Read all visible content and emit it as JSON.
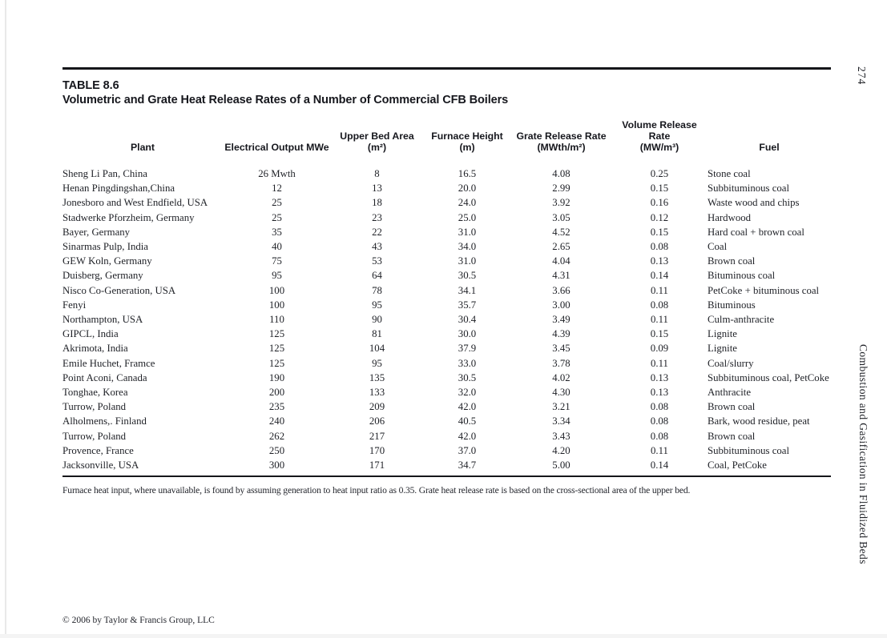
{
  "page": {
    "number": "274",
    "side_title": "Combustion and Gasification in Fluidized Beds",
    "copyright": "© 2006 by Taylor & Francis Group, LLC"
  },
  "table": {
    "label": "TABLE 8.6",
    "title": "Volumetric and Grate Heat Release Rates of a Number of Commercial CFB Boilers",
    "columns": [
      {
        "label": "Plant",
        "unit": ""
      },
      {
        "label": "Electrical Output MWe",
        "unit": ""
      },
      {
        "label": "Upper Bed Area",
        "unit": "(m²)"
      },
      {
        "label": "Furnace Height",
        "unit": "(m)"
      },
      {
        "label": "Grate Release Rate",
        "unit": "(MWth/m²)"
      },
      {
        "label": "Volume Release Rate",
        "unit": "(MW/m³)"
      },
      {
        "label": "Fuel",
        "unit": ""
      }
    ],
    "rows": [
      [
        "Sheng Li Pan, China",
        "26 Mwth",
        "8",
        "16.5",
        "4.08",
        "0.25",
        "Stone coal"
      ],
      [
        "Henan Pingdingshan,China",
        "12",
        "13",
        "20.0",
        "2.99",
        "0.15",
        "Subbituminous coal"
      ],
      [
        "Jonesboro and West Endfield, USA",
        "25",
        "18",
        "24.0",
        "3.92",
        "0.16",
        "Waste wood and chips"
      ],
      [
        "Stadwerke Pforzheim, Germany",
        "25",
        "23",
        "25.0",
        "3.05",
        "0.12",
        "Hardwood"
      ],
      [
        "Bayer, Germany",
        "35",
        "22",
        "31.0",
        "4.52",
        "0.15",
        "Hard coal + brown coal"
      ],
      [
        "Sinarmas Pulp, India",
        "40",
        "43",
        "34.0",
        "2.65",
        "0.08",
        "Coal"
      ],
      [
        "GEW Koln, Germany",
        "75",
        "53",
        "31.0",
        "4.04",
        "0.13",
        "Brown coal"
      ],
      [
        "Duisberg, Germany",
        "95",
        "64",
        "30.5",
        "4.31",
        "0.14",
        "Bituminous coal"
      ],
      [
        "Nisco Co-Generation, USA",
        "100",
        "78",
        "34.1",
        "3.66",
        "0.11",
        "PetCoke + bituminous coal"
      ],
      [
        "Fenyi",
        "100",
        "95",
        "35.7",
        "3.00",
        "0.08",
        "Bituminous"
      ],
      [
        "Northampton, USA",
        "110",
        "90",
        "30.4",
        "3.49",
        "0.11",
        "Culm-anthracite"
      ],
      [
        "GIPCL, India",
        "125",
        "81",
        "30.0",
        "4.39",
        "0.15",
        "Lignite"
      ],
      [
        "Akrimota, India",
        "125",
        "104",
        "37.9",
        "3.45",
        "0.09",
        "Lignite"
      ],
      [
        "Emile Huchet, Framce",
        "125",
        "95",
        "33.0",
        "3.78",
        "0.11",
        "Coal/slurry"
      ],
      [
        "Point Aconi, Canada",
        "190",
        "135",
        "30.5",
        "4.02",
        "0.13",
        "Subbituminous coal, PetCoke"
      ],
      [
        "Tonghae, Korea",
        "200",
        "133",
        "32.0",
        "4.30",
        "0.13",
        "Anthracite"
      ],
      [
        "Turrow, Poland",
        "235",
        "209",
        "42.0",
        "3.21",
        "0.08",
        "Brown coal"
      ],
      [
        "Alholmens,. Finland",
        "240",
        "206",
        "40.5",
        "3.34",
        "0.08",
        "Bark, wood residue, peat"
      ],
      [
        "Turrow, Poland",
        "262",
        "217",
        "42.0",
        "3.43",
        "0.08",
        "Brown coal"
      ],
      [
        "Provence, France",
        "250",
        "170",
        "37.0",
        "4.20",
        "0.11",
        "Subbituminous coal"
      ],
      [
        "Jacksonville, USA",
        "300",
        "171",
        "34.7",
        "5.00",
        "0.14",
        "Coal, PetCoke"
      ]
    ],
    "footnote": "Furnace heat input, where unavailable, is found by assuming generation to heat input ratio as 0.35. Grate heat release rate is based on the cross-sectional area of the upper bed."
  }
}
